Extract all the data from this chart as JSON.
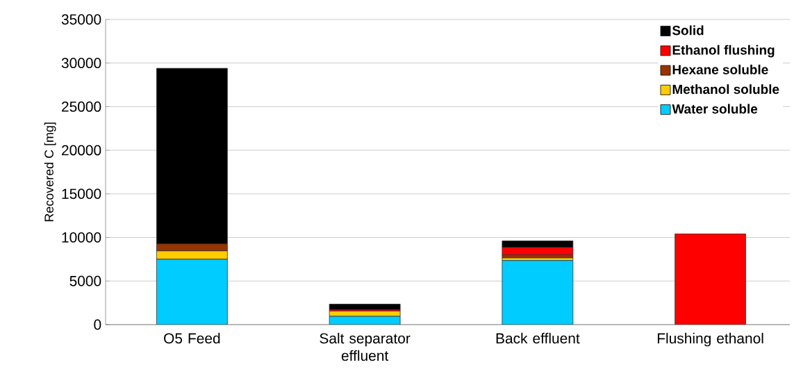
{
  "chart_data": {
    "type": "bar",
    "stacked": true,
    "ylabel": "Recovered C [mg]",
    "categories": [
      "O5 Feed",
      "Salt separator effluent",
      "Back effluent",
      "Flushing ethanol"
    ],
    "series": [
      {
        "name": "Water soluble",
        "color": "#00ccff",
        "values": [
          7500,
          950,
          7350,
          0
        ]
      },
      {
        "name": "Methanol soluble",
        "color": "#ffcc00",
        "values": [
          950,
          600,
          300,
          0
        ]
      },
      {
        "name": "Hexane soluble",
        "color": "#993300",
        "values": [
          800,
          null,
          350,
          0
        ]
      },
      {
        "name": "Ethanol flushing",
        "color": "#ff0000",
        "values": [
          0,
          150,
          850,
          10400
        ]
      },
      {
        "name": "Solid",
        "color": "#000000",
        "values": [
          20150,
          650,
          750,
          0
        ]
      }
    ],
    "ylim": [
      0,
      35000
    ],
    "yticks": [
      0,
      5000,
      10000,
      15000,
      20000,
      25000,
      30000,
      35000
    ],
    "grid": "y",
    "legend": "top right"
  }
}
